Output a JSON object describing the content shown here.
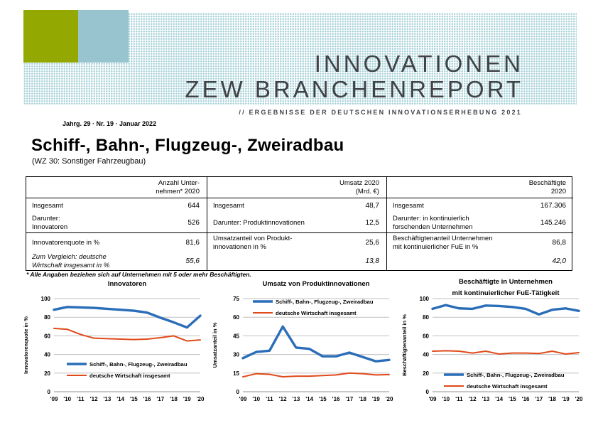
{
  "header": {
    "title_line1": "INNOVATIONEN",
    "title_line2": "ZEW BRANCHENREPORT",
    "subtitle": "// ERGEBNISSE DER DEUTSCHEN INNOVATIONSERHEBUNG 2021",
    "issue": "Jahrg. 29 · Nr. 19 · Januar 2022",
    "colors": {
      "green_square": "#93a800",
      "blue_square": "#98c4cf",
      "dot_pattern": "#a7d1d9",
      "text": "#3f4347"
    }
  },
  "page_title": "Schiff-, Bahn-, Flugzeug-, Zweiradbau",
  "page_subtitle": "(WZ 30: Sonstiger Fahrzeugbau)",
  "table": {
    "columns": [
      {
        "header": "Anzahl Unter-\nnehmen* 2020",
        "rows": [
          {
            "label": "Insgesamt",
            "value": "644"
          },
          {
            "label": "Darunter:\nInnovatoren",
            "value": "526"
          },
          {
            "label": "Innovatorenquote in %",
            "value": "81,6"
          },
          {
            "label": "Zum Vergleich: deutsche\nWirtschaft insgesamt in %",
            "value": "55,6"
          }
        ]
      },
      {
        "header": "Umsatz 2020\n(Mrd. €)",
        "rows": [
          {
            "label": "Insgesamt",
            "value": "48,7"
          },
          {
            "label": "Darunter: Produktinnovationen",
            "value": "12,5"
          },
          {
            "label": "Umsatzanteil von Produkt-\ninnovationen in %",
            "value": "25,6"
          },
          {
            "label": "",
            "value": "13,8"
          }
        ]
      },
      {
        "header": "Beschäftigte\n2020",
        "rows": [
          {
            "label": "Insgesamt",
            "value": "167.306"
          },
          {
            "label": "Darunter: in kontinuierlich\nforschenden Unternehmen",
            "value": "145.246"
          },
          {
            "label": "Beschäftigtenanteil Unternehmen\nmit kontinuierlicher FuE in %",
            "value": "86,8"
          },
          {
            "label": "",
            "value": "42,0"
          }
        ]
      }
    ]
  },
  "footnote": "* Alle Angaben beziehen sich auf Unternehmen mit 5 oder mehr Beschäftigten.",
  "chart_data": [
    {
      "type": "line",
      "title": "Innovatoren",
      "ylabel": "Innovatorenquote in %",
      "ylim": [
        0,
        100
      ],
      "ytick_step": 20,
      "grid": true,
      "legend_position": "inside-lower-left",
      "x": [
        "'09",
        "'10",
        "'11",
        "'12",
        "'13",
        "'14",
        "'15",
        "'16",
        "'17",
        "'18",
        "'19",
        "'20"
      ],
      "series": [
        {
          "name": "Schiff-, Bahn-, Flugzeug-, Zweiradbau",
          "color": "#2a6db8",
          "width": 3.4,
          "values": [
            88,
            91,
            90.5,
            90,
            89,
            88,
            87,
            85,
            79.5,
            74.5,
            69,
            81.6
          ]
        },
        {
          "name": "deutsche Wirtschaft insgesamt",
          "color": "#e0491a",
          "width": 2,
          "values": [
            68,
            67,
            61.5,
            57.5,
            57,
            56.5,
            56,
            56.5,
            58,
            60,
            54.5,
            55.6
          ]
        }
      ]
    },
    {
      "type": "line",
      "title": "Umsatz von Produktinnovationen",
      "ylabel": "Umsatzanteil in %",
      "ylim": [
        0,
        75
      ],
      "ytick_step": 15,
      "grid": true,
      "legend_position": "inside-upper-left",
      "x": [
        "'09",
        "'10",
        "'11",
        "'12",
        "'13",
        "'14",
        "'15",
        "'16",
        "'17",
        "'18",
        "'19",
        "'20"
      ],
      "series": [
        {
          "name": "Schiff-, Bahn-, Flugzeug-, Zweiradbau",
          "color": "#2a6db8",
          "width": 3.4,
          "values": [
            27,
            32,
            33,
            52.5,
            35.5,
            34.5,
            28.5,
            28.5,
            31.5,
            28,
            24.5,
            25.6
          ]
        },
        {
          "name": "deutsche Wirtschaft insgesamt",
          "color": "#e0491a",
          "width": 2,
          "values": [
            12,
            14.5,
            14,
            12,
            12.5,
            12.5,
            13,
            13.5,
            15,
            14.5,
            13.5,
            13.8
          ]
        }
      ]
    },
    {
      "type": "line",
      "title": "Beschäftigte in Unternehmen",
      "title_line2": "mit kontinuierlicher FuE-Tätigkeit",
      "ylabel": "Beschäftigtenanteil in %",
      "ylim": [
        0,
        100
      ],
      "ytick_step": 20,
      "grid": true,
      "legend_position": "inside-lower-left",
      "x": [
        "'09",
        "'10",
        "'11",
        "'12",
        "'13",
        "'14",
        "'15",
        "'16",
        "'17",
        "'18",
        "'19",
        "'20"
      ],
      "series": [
        {
          "name": "Schiff-, Bahn-, Flugzeug-, Zweiradbau",
          "color": "#2a6db8",
          "width": 3.4,
          "values": [
            89,
            93,
            89.5,
            89,
            92.5,
            92,
            91,
            89,
            83,
            88,
            89.5,
            86.8
          ]
        },
        {
          "name": "deutsche Wirtschaft insgesamt",
          "color": "#e0491a",
          "width": 2,
          "values": [
            43.5,
            44,
            43.5,
            41.5,
            43.5,
            40.5,
            41.5,
            41.5,
            41,
            43.5,
            40.5,
            42
          ]
        }
      ]
    }
  ]
}
